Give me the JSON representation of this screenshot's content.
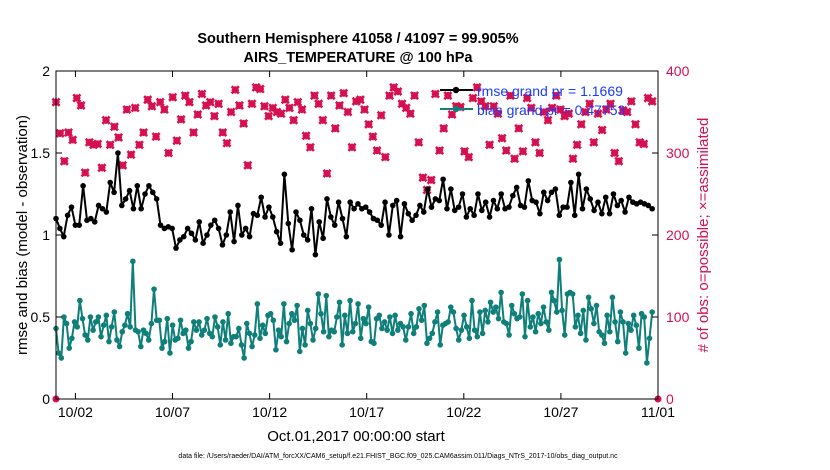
{
  "title": {
    "line1": "Southern Hemisphere 41058 / 41097 = 99.905%",
    "line2": "AIRS_TEMPERATURE @ 100 hPa"
  },
  "xlabel": "Oct.01,2017 00:00:00 start",
  "ylabel_left": "rmse and bias (model - observation)",
  "ylabel_right": "# of obs: o=possible; ×=assimilated",
  "footer": "data file: /Users/raeder/DAI/ATM_forcXX/CAM6_setup/f.e21.FHIST_BGC.f09_025.CAM6assim.011/Diags_NTrS_2017-10/obs_diag_output.nc",
  "colors": {
    "rmse": "#000000",
    "bias": "#0f7f7a",
    "count": "#d6104f"
  },
  "chart_data": {
    "type": "line",
    "x_ticks": [
      {
        "day": 2,
        "label": "10/02"
      },
      {
        "day": 7,
        "label": "10/07"
      },
      {
        "day": 12,
        "label": "10/12"
      },
      {
        "day": 17,
        "label": "10/17"
      },
      {
        "day": 22,
        "label": "10/22"
      },
      {
        "day": 27,
        "label": "10/27"
      },
      {
        "day": 32,
        "label": "11/01"
      }
    ],
    "xlim": [
      1,
      32
    ],
    "ylim_left": [
      0,
      2
    ],
    "yticks_left": [
      0,
      0.5,
      1,
      1.5,
      2
    ],
    "ylim_right": [
      0,
      400
    ],
    "yticks_right": [
      0,
      100,
      200,
      300,
      400
    ],
    "series": [
      {
        "name": "rmse grand pr = 1.1669",
        "axis": "left",
        "marker": "circle",
        "values": [
          1.1,
          1.04,
          0.99,
          1.12,
          1.17,
          1.06,
          1.06,
          1.3,
          1.09,
          1.1,
          1.08,
          1.18,
          1.16,
          1.14,
          1.32,
          1.26,
          1.5,
          1.18,
          1.22,
          1.27,
          1.16,
          1.3,
          1.16,
          1.25,
          1.3,
          1.26,
          1.22,
          1.06,
          1.04,
          1.05,
          1.04,
          0.92,
          0.97,
          0.99,
          1.04,
          1.01,
          0.97,
          1.08,
          0.95,
          1.0,
          1.06,
          1.09,
          1.04,
          0.94,
          1.0,
          1.14,
          0.96,
          1.18,
          1.0,
          1.04,
          0.99,
          1.13,
          1.12,
          1.23,
          1.11,
          1.17,
          1.11,
          1.02,
          0.95,
          1.37,
          1.07,
          0.91,
          1.14,
          1.09,
          1.0,
          0.97,
          1.16,
          0.88,
          1.08,
          0.98,
          1.22,
          1.11,
          1.06,
          1.2,
          1.1,
          0.99,
          1.2,
          1.16,
          1.19,
          1.16,
          1.17,
          1.14,
          1.1,
          1.09,
          1.06,
          1.2,
          1.0,
          1.18,
          1.21,
          0.99,
          1.19,
          1.13,
          1.09,
          1.12,
          1.18,
          1.14,
          1.28,
          1.17,
          1.22,
          1.21,
          1.34,
          1.16,
          1.28,
          1.15,
          1.17,
          1.25,
          1.11,
          1.16,
          1.12,
          1.25,
          1.15,
          1.2,
          1.11,
          1.21,
          1.16,
          1.25,
          1.16,
          1.17,
          1.24,
          1.29,
          1.18,
          1.17,
          1.33,
          1.21,
          1.2,
          1.13,
          1.26,
          1.21,
          1.26,
          1.28,
          1.12,
          1.17,
          1.17,
          1.32,
          1.12,
          1.37,
          1.16,
          1.28,
          1.22,
          1.15,
          1.2,
          1.13,
          1.23,
          1.13,
          1.25,
          1.18,
          1.21,
          1.14,
          1.23,
          1.2,
          1.19,
          1.2,
          1.19,
          1.18,
          1.16
        ]
      },
      {
        "name": "bias grand pr = 0.47753",
        "axis": "left",
        "marker": "circle",
        "values": [
          0.43,
          0.28,
          0.25,
          0.5,
          0.46,
          0.31,
          0.37,
          0.47,
          0.44,
          0.6,
          0.49,
          0.39,
          0.36,
          0.5,
          0.42,
          0.47,
          0.5,
          0.38,
          0.45,
          0.51,
          0.35,
          0.44,
          0.53,
          0.36,
          0.32,
          0.41,
          0.45,
          0.52,
          0.44,
          0.84,
          0.42,
          0.41,
          0.32,
          0.42,
          0.4,
          0.36,
          0.46,
          0.67,
          0.48,
          0.48,
          0.31,
          0.35,
          0.49,
          0.28,
          0.45,
          0.36,
          0.37,
          0.48,
          0.4,
          0.42,
          0.31,
          0.35,
          0.47,
          0.42,
          0.47,
          0.39,
          0.42,
          0.49,
          0.4,
          0.38,
          0.5,
          0.44,
          0.33,
          0.47,
          0.36,
          0.52,
          0.34,
          0.38,
          0.38,
          0.43,
          0.33,
          0.25,
          0.46,
          0.4,
          0.32,
          0.39,
          0.58,
          0.37,
          0.45,
          0.4,
          0.51,
          0.52,
          0.48,
          0.3,
          0.42,
          0.38,
          0.58,
          0.35,
          0.46,
          0.52,
          0.48,
          0.57,
          0.29,
          0.43,
          0.33,
          0.54,
          0.46,
          0.36,
          0.43,
          0.64,
          0.52,
          0.41,
          0.63,
          0.38,
          0.42,
          0.41,
          0.5,
          0.59,
          0.33,
          0.51,
          0.4,
          0.6,
          0.41,
          0.46,
          0.58,
          0.37,
          0.49,
          0.46,
          0.56,
          0.35,
          0.34,
          0.49,
          0.51,
          0.43,
          0.47,
          0.42,
          0.5,
          0.4,
          0.51,
          0.42,
          0.46,
          0.44,
          0.36,
          0.44,
          0.52,
          0.4,
          0.44,
          0.55,
          0.48,
          0.57,
          0.34,
          0.37,
          0.4,
          0.47,
          0.53,
          0.33,
          0.45,
          0.46,
          0.47,
          0.56,
          0.53,
          0.43,
          0.36,
          0.42,
          0.51,
          0.44,
          0.37,
          0.6,
          0.42,
          0.38,
          0.53,
          0.4,
          0.54,
          0.47,
          0.59,
          0.53,
          0.56,
          0.49,
          0.65,
          0.47,
          0.46,
          0.39,
          0.57,
          0.52,
          0.49,
          0.5,
          0.64,
          0.38,
          0.6,
          0.44,
          0.5,
          0.41,
          0.52,
          0.46,
          0.56,
          0.47,
          0.42,
          0.65,
          0.6,
          0.53,
          0.85,
          0.54,
          0.39,
          0.64,
          0.65,
          0.64,
          0.44,
          0.51,
          0.4,
          0.54,
          0.36,
          0.62,
          0.55,
          0.46,
          0.57,
          0.41,
          0.39,
          0.34,
          0.51,
          0.41,
          0.62,
          0.47,
          0.35,
          0.53,
          0.47,
          0.28,
          0.46,
          0.42,
          0.51,
          0.45,
          0.31,
          0.52,
          0.5,
          0.22,
          0.37,
          0.53
        ]
      },
      {
        "name": "possible",
        "axis": "right",
        "marker": "circle",
        "values": [
          0,
          0
        ]
      },
      {
        "name": "assimilated",
        "axis": "right",
        "marker": "x",
        "values": [
          362,
          324,
          290,
          325,
          316,
          367,
          358,
          276,
          313,
          310,
          311,
          282,
          340,
          310,
          332,
          319,
          285,
          353,
          298,
          355,
          310,
          325,
          365,
          357,
          320,
          362,
          353,
          300,
          368,
          315,
          341,
          370,
          362,
          325,
          347,
          372,
          358,
          362,
          345,
          360,
          325,
          312,
          350,
          377,
          358,
          336,
          285,
          360,
          380,
          378,
          357,
          345,
          355,
          350,
          348,
          365,
          355,
          340,
          362,
          353,
          321,
          307,
          370,
          360,
          340,
          275,
          370,
          330,
          358,
          373,
          350,
          307,
          363,
          365,
          353,
          335,
          320,
          303,
          346,
          295,
          370,
          380,
          375,
          360,
          355,
          348,
          370,
          313,
          270,
          255,
          267,
          372,
          303,
          330,
          370,
          347,
          357,
          356,
          302,
          295,
          367,
          380,
          363,
          357,
          310,
          357,
          348,
          318,
          303,
          370,
          293,
          330,
          302,
          367,
          355,
          313,
          300,
          350,
          340,
          355,
          370,
          353,
          345,
          348,
          293,
          310,
          335,
          350,
          360,
          313,
          348,
          328,
          353,
          360,
          300,
          290,
          352,
          350,
          363,
          335,
          313,
          311,
          367,
          363
        ]
      }
    ],
    "grid": false,
    "legend": "top-right"
  }
}
